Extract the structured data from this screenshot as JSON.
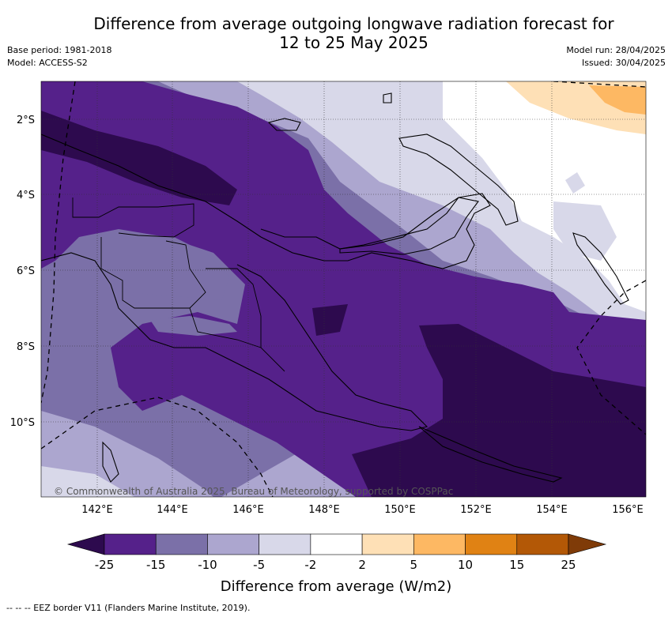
{
  "title": {
    "line1": "Difference from average outgoing longwave radiation forecast for",
    "line2": "12 to 25 May 2025"
  },
  "meta": {
    "base_period": "Base period: 1981-2018",
    "model": "Model: ACCESS-S2",
    "model_run": "Model run: 28/04/2025",
    "issued": "Issued: 30/04/2025"
  },
  "map": {
    "longitude_labels": [
      "142°E",
      "144°E",
      "146°E",
      "148°E",
      "150°E",
      "152°E",
      "154°E",
      "156°E"
    ],
    "latitude_labels": [
      "2°S",
      "4°S",
      "6°S",
      "8°S",
      "10°S"
    ],
    "copyright": "© Commonwealth of Australia 2025, Bureau of Meteorology, supported by COSPPac"
  },
  "colorbar": {
    "title": "Difference from average (W/m2)",
    "ticks": [
      "-25",
      "-15",
      "-10",
      "-5",
      "-2",
      "2",
      "5",
      "10",
      "15",
      "25"
    ],
    "colors": {
      "below_min": "#2d0a4e",
      "-25_-15": "#55218a",
      "-15_-10": "#7b70a8",
      "-10_-5": "#aca6cf",
      "-5_-2": "#d8d8e9",
      "-2_2": "#ffffff",
      "2_5": "#fee0b6",
      "5_10": "#fdb863",
      "10_15": "#e08214",
      "15_25": "#b35806",
      "above_max": "#7f3b08"
    }
  },
  "footnote": "--  --  -- EEZ border V11 (Flanders Marine Institute, 2019)."
}
